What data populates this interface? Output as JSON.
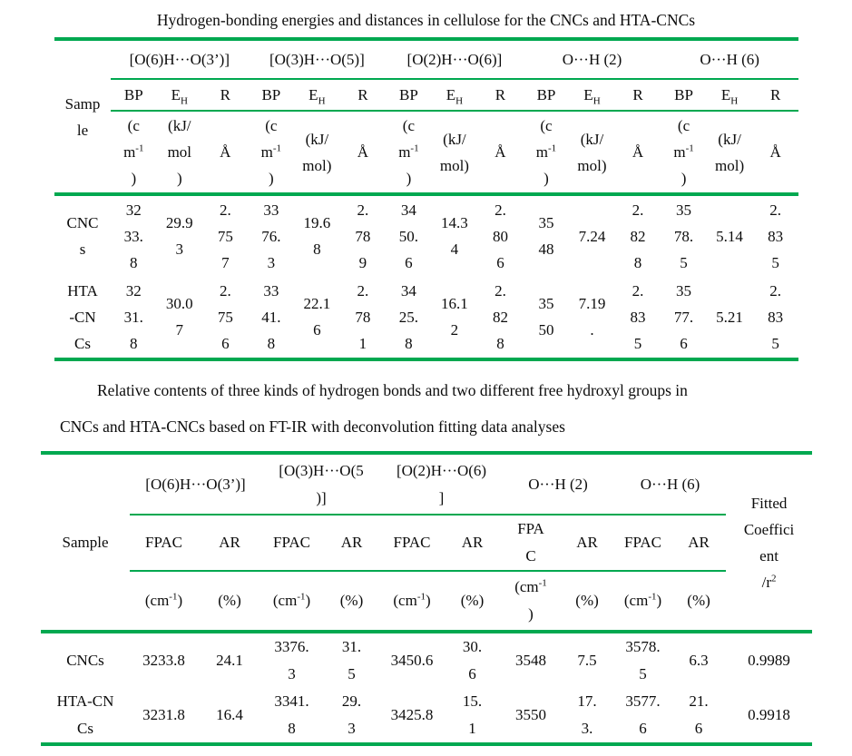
{
  "colors": {
    "rule_green": "#00a850",
    "text": "#0c0c0c",
    "background": "#ffffff"
  },
  "table1": {
    "title": "Hydrogen-bonding energies and distances in cellulose for the CNCs and HTA-CNCs",
    "sample_header": "Samp\nle",
    "groups": [
      "[O(6)H···O(3’)]",
      "[O(3)H···O(5)]",
      "[O(2)H···O(6)]",
      "O···H (2)",
      "O···H (6)"
    ],
    "sub_headers": [
      "BP",
      "E_{H}",
      "R",
      "BP",
      "E_{H}",
      "R",
      "BP",
      "E_{H}",
      "R",
      "BP",
      "E_{H}",
      "R",
      "BP",
      "E_{H}",
      "R"
    ],
    "units": [
      "(c\nm^{-1}\n)",
      "(kJ/\nmol\n)",
      "Å",
      "(c\nm^{-1}\n)",
      "(kJ/\nmol)",
      "Å",
      "(c\nm^{-1}\n)",
      "(kJ/\nmol)",
      "Å",
      "(c\nm^{-1}\n)",
      "(kJ/\nmol)",
      "Å",
      "(c\nm^{-1}\n)",
      "(kJ/\nmol)",
      "Å"
    ],
    "rows": [
      {
        "label": "CNC\ns",
        "values": [
          "32\n33.\n8",
          "29.9\n3",
          "2.\n75\n7",
          "33\n76.\n3",
          "19.6\n8",
          "2.\n78\n9",
          "34\n50.\n6",
          "14.3\n4",
          "2.\n80\n6",
          "35\n48",
          "7.24",
          "2.\n82\n8",
          "35\n78.\n5",
          "5.14",
          "2.\n83\n5"
        ]
      },
      {
        "label": "HTA\n-CN\nCs",
        "values": [
          "32\n31.\n8",
          "30.0\n7",
          "2.\n75\n6",
          "33\n41.\n8",
          "22.1\n6",
          "2.\n78\n1",
          "34\n25.\n8",
          "16.1\n2",
          "2.\n82\n8",
          "35\n50",
          "7.19\n.",
          "2.\n83\n5",
          "35\n77.\n6",
          "5.21",
          "2.\n83\n5"
        ]
      }
    ]
  },
  "table2": {
    "title_line1": "Relative contents of three kinds of hydrogen bonds and two different free hydroxyl groups in",
    "title_line2": "CNCs and HTA-CNCs based on FT-IR with deconvolution fitting data analyses",
    "sample_header": "Sample",
    "groups": [
      "[O(6)H···O(3’)]",
      "[O(3)H···O(5\n)]",
      "[O(2)H···O(6)\n]",
      "O···H (2)",
      "O···H (6)"
    ],
    "fitted_header": "Fitted\nCoeffici\nent\n/r^{2}",
    "sub_headers": [
      "FPAC",
      "AR",
      "FPAC",
      "AR",
      "FPAC",
      "AR",
      "FPA\nC",
      "AR",
      "FPAC",
      "AR"
    ],
    "units": [
      "(cm^{-1})",
      "(%)",
      "(cm^{-1})",
      "(%)",
      "(cm^{-1})",
      "(%)",
      "(cm^{-1}\n)",
      "(%)",
      "(cm^{-1})",
      "(%)"
    ],
    "rows": [
      {
        "label": "CNCs",
        "values": [
          "3233.8",
          "24.1",
          "3376.\n3",
          "31.\n5",
          "3450.6",
          "30.\n6",
          "3548",
          "7.5",
          "3578.\n5",
          "6.3"
        ],
        "fitted": "0.9989"
      },
      {
        "label": "HTA-CN\nCs",
        "values": [
          "3231.8",
          "16.4",
          "3341.\n8",
          "29.\n3",
          "3425.8",
          "15.\n1",
          "3550",
          "17.\n3.",
          "3577.\n6",
          "21.\n6"
        ],
        "fitted": "0.9918"
      }
    ]
  }
}
